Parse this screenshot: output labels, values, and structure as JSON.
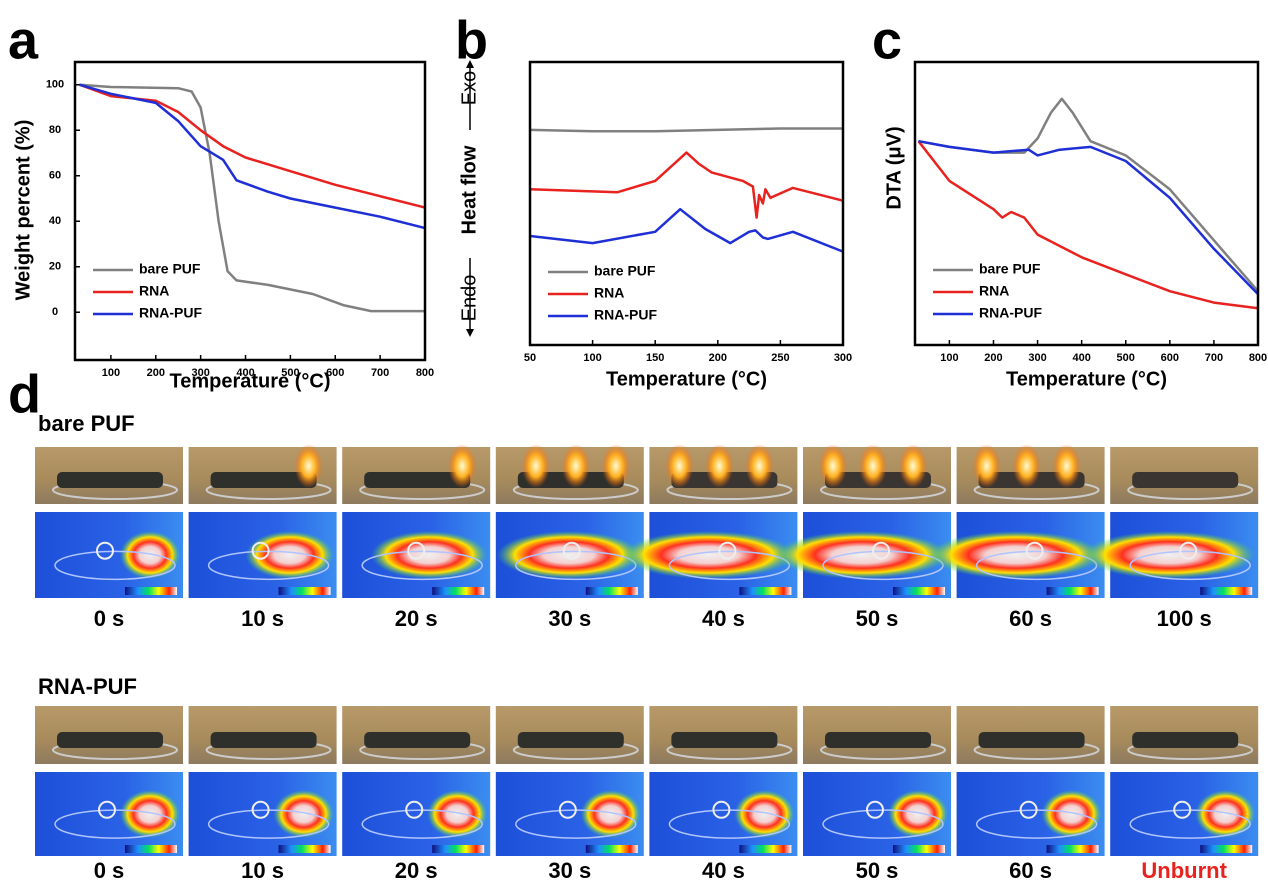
{
  "chart_data": [
    {
      "type": "line",
      "panel": "a",
      "xlabel": "Temperature (°C)",
      "ylabel": "Weight percent (%)",
      "xlim": [
        20,
        800
      ],
      "xticks": [
        100,
        200,
        300,
        400,
        500,
        600,
        700,
        800
      ],
      "ylim": [
        -21,
        110
      ],
      "yticks": [
        0,
        20,
        40,
        60,
        80,
        100
      ],
      "legend": "lower-left",
      "series": [
        {
          "name": "bare PUF",
          "color": "#808080",
          "x": [
            30,
            100,
            250,
            280,
            300,
            320,
            340,
            360,
            380,
            450,
            550,
            620,
            680,
            800
          ],
          "values": [
            100,
            99,
            98.5,
            97,
            90,
            70,
            40,
            18,
            14,
            12,
            8,
            3,
            0.5,
            0.5
          ]
        },
        {
          "name": "RNA",
          "color": "#e8221f",
          "x": [
            30,
            100,
            200,
            250,
            300,
            350,
            400,
            500,
            600,
            700,
            800
          ],
          "values": [
            100,
            95,
            93,
            88,
            80,
            73,
            68,
            62,
            56,
            51,
            46
          ]
        },
        {
          "name": "RNA-PUF",
          "color": "#1f2fd6",
          "x": [
            30,
            100,
            200,
            250,
            300,
            350,
            380,
            450,
            500,
            600,
            700,
            800
          ],
          "values": [
            100,
            96,
            92,
            84,
            73,
            67,
            58,
            53,
            50,
            46,
            42,
            37
          ]
        }
      ]
    },
    {
      "type": "line",
      "panel": "b",
      "xlabel": "Temperature (°C)",
      "ylabel": "Heat flow",
      "annotations": [
        "Exo",
        "Endo"
      ],
      "xlim": [
        50,
        300
      ],
      "xticks": [
        50,
        100,
        150,
        200,
        250,
        300
      ],
      "ylim": [
        0,
        100
      ],
      "legend": "lower-left",
      "series": [
        {
          "name": "bare PUF",
          "color": "#808080",
          "x": [
            50,
            100,
            150,
            200,
            250,
            300
          ],
          "values": [
            76,
            75.5,
            75.5,
            76,
            76.5,
            76.5
          ]
        },
        {
          "name": "RNA",
          "color": "#e8221f",
          "x": [
            50,
            120,
            150,
            165,
            175,
            185,
            195,
            220,
            228,
            231,
            233,
            236,
            238,
            242,
            260,
            300
          ],
          "values": [
            55,
            54,
            58,
            64,
            68,
            64,
            61,
            58,
            56,
            45,
            53,
            50,
            55,
            52,
            55.5,
            51
          ]
        },
        {
          "name": "RNA-PUF",
          "color": "#1f2fd6",
          "x": [
            50,
            100,
            150,
            170,
            190,
            210,
            225,
            230,
            236,
            240,
            260,
            300
          ],
          "values": [
            38.5,
            36,
            40,
            48,
            41,
            36,
            40,
            40.5,
            38,
            37.5,
            40,
            33
          ]
        }
      ]
    },
    {
      "type": "line",
      "panel": "c",
      "xlabel": "Temperature (°C)",
      "ylabel": "DTA (μV)",
      "xlim": [
        22,
        800
      ],
      "xticks": [
        100,
        200,
        300,
        400,
        500,
        600,
        700,
        800
      ],
      "ylim": [
        0,
        100
      ],
      "legend": "lower-left",
      "series": [
        {
          "name": "bare PUF",
          "color": "#808080",
          "x": [
            30,
            100,
            200,
            270,
            300,
            330,
            355,
            380,
            420,
            500,
            600,
            700,
            800
          ],
          "values": [
            72,
            70,
            68,
            68,
            73,
            82,
            87,
            82,
            72,
            67,
            55,
            37,
            19
          ]
        },
        {
          "name": "RNA",
          "color": "#e8221f",
          "x": [
            30,
            100,
            200,
            220,
            240,
            270,
            300,
            400,
            500,
            600,
            700,
            800
          ],
          "values": [
            72,
            58,
            48,
            45,
            47,
            45,
            39,
            31,
            25,
            19,
            15,
            13
          ]
        },
        {
          "name": "RNA-PUF",
          "color": "#1f2fd6",
          "x": [
            30,
            100,
            200,
            280,
            300,
            350,
            420,
            500,
            600,
            700,
            800
          ],
          "values": [
            72,
            70,
            68,
            69,
            67,
            69,
            70,
            65,
            52,
            34,
            18
          ]
        }
      ]
    }
  ],
  "panel_d": {
    "label": "d",
    "groups": [
      {
        "name": "bare PUF",
        "times": [
          "0 s",
          "10 s",
          "20 s",
          "30 s",
          "40 s",
          "50 s",
          "60 s",
          "100 s"
        ]
      },
      {
        "name": "RNA-PUF",
        "times": [
          "0 s",
          "10 s",
          "20 s",
          "30 s",
          "40 s",
          "50 s",
          "60 s",
          "Unburnt"
        ]
      }
    ]
  }
}
